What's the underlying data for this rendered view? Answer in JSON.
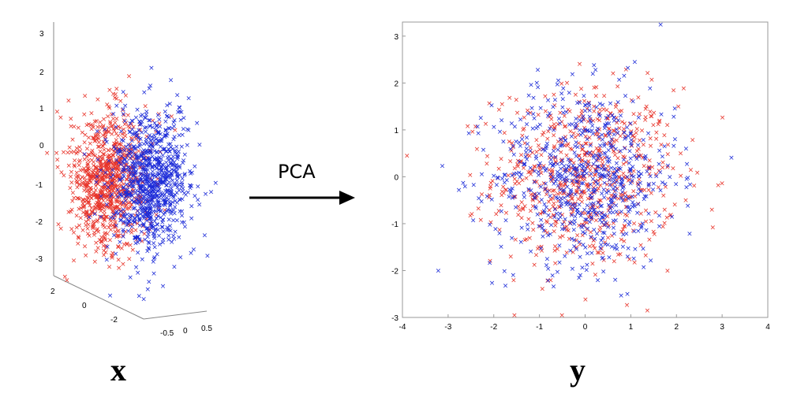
{
  "figure": {
    "arrow_label": "PCA",
    "left_label": "x",
    "right_label": "y"
  },
  "colors": {
    "class_a": "#e8352b",
    "class_b": "#1c2bd8"
  },
  "marker": "×",
  "chart_data": [
    {
      "type": "scatter",
      "name_hint": "",
      "projection": "3d",
      "xlim": [
        -0.5,
        0.5
      ],
      "ylim": [
        -3,
        3
      ],
      "zlim": [
        -3.5,
        3.2
      ],
      "x_ticks": [
        "-0.5",
        "0",
        "0.5"
      ],
      "y_ticks": [
        "2",
        "0",
        "-2"
      ],
      "z_ticks": [
        "3",
        "2",
        "1",
        "0",
        "-1",
        "-2",
        "-3"
      ],
      "series": [
        {
          "color_key": "class_a",
          "count": 900,
          "x_mean": -0.15,
          "x_sd": 0.12,
          "y_mean": 0,
          "y_sd": 1.0,
          "z_mean": -0.5,
          "z_sd": 0.95
        },
        {
          "color_key": "class_b",
          "count": 900,
          "x_mean": 0.15,
          "x_sd": 0.12,
          "y_mean": 0,
          "y_sd": 1.0,
          "z_mean": -0.5,
          "z_sd": 0.95
        }
      ]
    },
    {
      "type": "scatter",
      "xlim": [
        -4,
        4
      ],
      "ylim": [
        -3,
        3.3
      ],
      "x_ticks": [
        "-4",
        "-3",
        "-2",
        "-1",
        "0",
        "1",
        "2",
        "3",
        "4"
      ],
      "y_ticks": [
        "3",
        "2",
        "1",
        "0",
        "-1",
        "-2",
        "-3"
      ],
      "series": [
        {
          "color_key": "class_a",
          "count": 700,
          "x_mean": 0,
          "x_sd": 1.0,
          "y_mean": 0,
          "y_sd": 0.95
        },
        {
          "color_key": "class_b",
          "count": 700,
          "x_mean": 0,
          "x_sd": 1.0,
          "y_mean": 0,
          "y_sd": 0.95
        }
      ]
    }
  ]
}
